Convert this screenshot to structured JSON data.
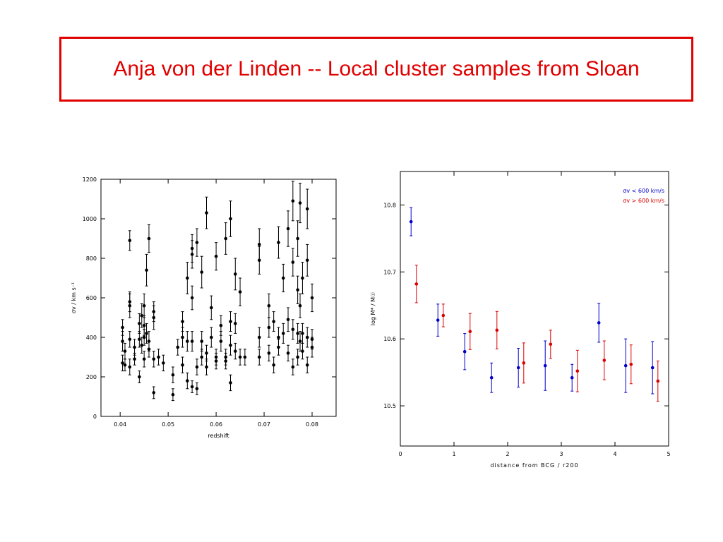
{
  "slide_title": "Anja von der Linden  -- Local cluster samples from Sloan",
  "chart_data": [
    {
      "type": "scatter",
      "xlabel": "redshift",
      "ylabel": "σv / km s⁻¹",
      "color": "#000000",
      "xlim": [
        0.036,
        0.085
      ],
      "ylim": [
        0,
        1200
      ],
      "xticks": [
        0.04,
        0.05,
        0.06,
        0.07,
        0.08
      ],
      "yticks": [
        0,
        200,
        400,
        600,
        800,
        1000,
        1200
      ],
      "x": [
        0.0405,
        0.0405,
        0.0405,
        0.041,
        0.041,
        0.042,
        0.042,
        0.042,
        0.042,
        0.042,
        0.043,
        0.043,
        0.044,
        0.044,
        0.044,
        0.0445,
        0.0445,
        0.045,
        0.045,
        0.045,
        0.045,
        0.0455,
        0.0455,
        0.046,
        0.046,
        0.046,
        0.047,
        0.047,
        0.047,
        0.047,
        0.048,
        0.049,
        0.051,
        0.051,
        0.052,
        0.053,
        0.053,
        0.053,
        0.054,
        0.054,
        0.054,
        0.055,
        0.055,
        0.055,
        0.055,
        0.055,
        0.056,
        0.056,
        0.056,
        0.057,
        0.057,
        0.057,
        0.058,
        0.058,
        0.058,
        0.059,
        0.059,
        0.06,
        0.06,
        0.06,
        0.061,
        0.061,
        0.062,
        0.062,
        0.062,
        0.063,
        0.063,
        0.063,
        0.063,
        0.064,
        0.064,
        0.064,
        0.065,
        0.065,
        0.066,
        0.069,
        0.069,
        0.069,
        0.069,
        0.071,
        0.071,
        0.071,
        0.072,
        0.072,
        0.073,
        0.073,
        0.073,
        0.074,
        0.074,
        0.075,
        0.075,
        0.075,
        0.076,
        0.076,
        0.076,
        0.076,
        0.077,
        0.077,
        0.077,
        0.077,
        0.0775,
        0.0775,
        0.0775,
        0.078,
        0.078,
        0.078,
        0.079,
        0.079,
        0.079,
        0.079,
        0.08,
        0.08,
        0.08
      ],
      "values": [
        450,
        380,
        270,
        260,
        330,
        890,
        560,
        580,
        250,
        390,
        350,
        290,
        470,
        390,
        200,
        510,
        360,
        460,
        560,
        290,
        400,
        740,
        420,
        900,
        380,
        340,
        500,
        530,
        120,
        290,
        300,
        270,
        110,
        210,
        350,
        400,
        260,
        480,
        700,
        180,
        380,
        850,
        820,
        150,
        380,
        600,
        880,
        140,
        250,
        730,
        380,
        300,
        1030,
        320,
        250,
        550,
        400,
        810,
        300,
        280,
        380,
        460,
        900,
        280,
        300,
        1000,
        170,
        360,
        480,
        720,
        330,
        470,
        630,
        300,
        300,
        870,
        790,
        400,
        300,
        560,
        320,
        450,
        480,
        260,
        880,
        400,
        350,
        420,
        700,
        490,
        320,
        950,
        1090,
        780,
        440,
        250,
        900,
        640,
        420,
        300,
        1080,
        380,
        560,
        700,
        330,
        420,
        1050,
        790,
        400,
        260,
        600,
        390,
        350
      ],
      "errors": [
        40,
        50,
        40,
        30,
        40,
        50,
        60,
        50,
        40,
        40,
        40,
        30,
        50,
        40,
        30,
        60,
        40,
        50,
        60,
        40,
        40,
        80,
        50,
        70,
        50,
        40,
        60,
        50,
        30,
        40,
        40,
        40,
        30,
        40,
        40,
        50,
        40,
        50,
        80,
        40,
        50,
        70,
        70,
        30,
        50,
        60,
        70,
        30,
        40,
        80,
        50,
        40,
        80,
        40,
        40,
        60,
        50,
        70,
        40,
        40,
        50,
        50,
        80,
        40,
        40,
        90,
        40,
        50,
        50,
        80,
        40,
        50,
        70,
        40,
        40,
        80,
        70,
        50,
        40,
        60,
        40,
        50,
        50,
        40,
        80,
        50,
        40,
        50,
        70,
        60,
        40,
        90,
        100,
        70,
        50,
        40,
        90,
        70,
        50,
        40,
        100,
        50,
        60,
        80,
        40,
        50,
        100,
        80,
        50,
        40,
        70,
        50,
        50
      ]
    },
    {
      "type": "scatter",
      "xlabel": "distance from BCG / r200",
      "ylabel": "log M* / M☉",
      "xlim": [
        0,
        5
      ],
      "ylim": [
        10.44,
        10.85
      ],
      "xticks": [
        0,
        1,
        2,
        3,
        4,
        5
      ],
      "yticks": [
        10.5,
        10.6,
        10.7,
        10.8
      ],
      "legend": "upper right",
      "series": [
        {
          "name": "σv < 600 km/s",
          "color": "#0000cc",
          "x": [
            0.2,
            0.7,
            1.2,
            1.7,
            2.2,
            2.7,
            3.2,
            3.7,
            4.2,
            4.7
          ],
          "values": [
            10.775,
            10.628,
            10.581,
            10.542,
            10.557,
            10.56,
            10.542,
            10.624,
            10.56,
            10.557
          ],
          "errors": [
            0.021,
            0.024,
            0.027,
            0.022,
            0.029,
            0.037,
            0.02,
            0.029,
            0.04,
            0.039
          ]
        },
        {
          "name": "σv > 600 km/s",
          "color": "#dd0000",
          "x": [
            0.3,
            0.8,
            1.3,
            1.8,
            2.3,
            2.8,
            3.3,
            3.8,
            4.3,
            4.8
          ],
          "values": [
            10.682,
            10.635,
            10.611,
            10.613,
            10.564,
            10.592,
            10.552,
            10.568,
            10.562,
            10.537
          ],
          "errors": [
            0.028,
            0.017,
            0.027,
            0.028,
            0.03,
            0.021,
            0.031,
            0.029,
            0.029,
            0.03
          ]
        }
      ]
    }
  ]
}
